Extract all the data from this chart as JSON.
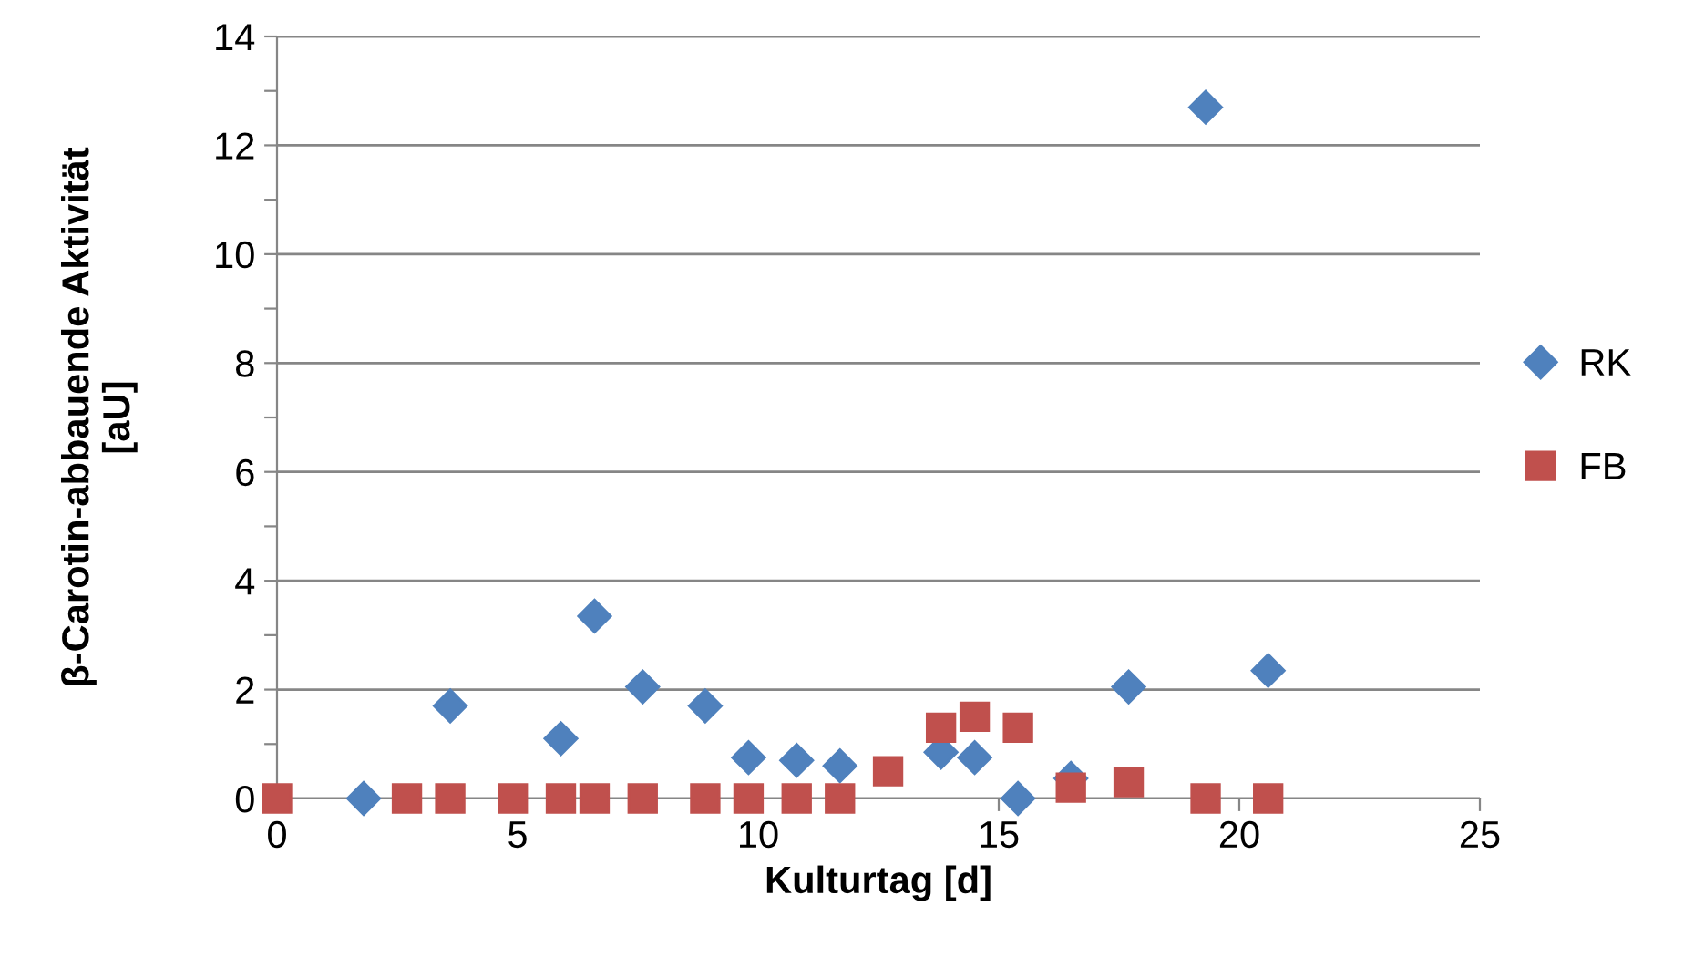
{
  "chart_data": {
    "type": "scatter",
    "xlabel": "Kulturtag [d]",
    "ylabel": "β-Carotin-abbauende Aktivität\n[aU]",
    "xlim": [
      0,
      25
    ],
    "xticks": [
      0,
      5,
      10,
      15,
      20,
      25
    ],
    "ylim": [
      0,
      14
    ],
    "yticks": [
      0,
      {
        "value": 1,
        "label": null
      },
      2,
      {
        "value": 3,
        "label": null
      },
      4,
      {
        "value": 5,
        "label": null
      },
      6,
      {
        "value": 7,
        "label": null
      },
      8,
      {
        "value": 9,
        "label": null
      },
      10,
      {
        "value": 11,
        "label": null
      },
      12,
      {
        "value": 13,
        "label": null
      },
      14
    ],
    "grid": "y",
    "legend": "right",
    "series": [
      {
        "name": "RK",
        "color": "#4f81bd",
        "marker": "diamond",
        "x": [
          1.8,
          3.6,
          5.9,
          6.6,
          7.6,
          8.9,
          9.8,
          10.8,
          11.7,
          13.8,
          14.5,
          15.4,
          16.5,
          17.7,
          19.3,
          20.6
        ],
        "values": [
          0,
          1.7,
          1.1,
          3.35,
          2.05,
          1.7,
          0.75,
          0.7,
          0.6,
          0.85,
          0.75,
          0,
          0.37,
          2.05,
          12.7,
          2.35
        ]
      },
      {
        "name": "FB",
        "color": "#c0504d",
        "marker": "square",
        "x": [
          0,
          2.7,
          3.6,
          4.9,
          5.9,
          6.6,
          7.6,
          8.9,
          9.8,
          10.8,
          11.7,
          12.7,
          13.8,
          14.5,
          15.4,
          16.5,
          17.7,
          19.3,
          20.6
        ],
        "values": [
          0,
          0,
          0,
          0,
          0,
          0,
          0,
          0,
          0,
          0,
          0,
          0.5,
          1.3,
          1.5,
          1.3,
          0.2,
          0.3,
          0,
          0
        ]
      }
    ]
  }
}
